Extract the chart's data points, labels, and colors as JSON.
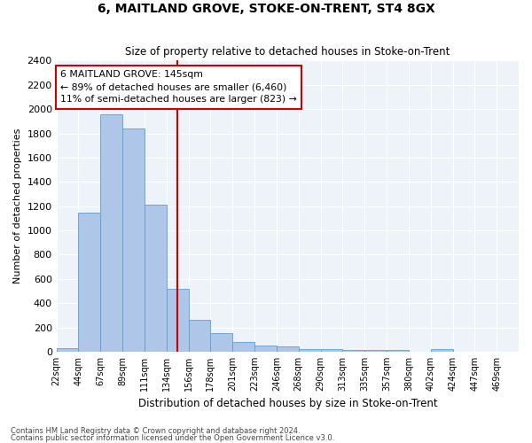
{
  "title": "6, MAITLAND GROVE, STOKE-ON-TRENT, ST4 8GX",
  "subtitle": "Size of property relative to detached houses in Stoke-on-Trent",
  "xlabel": "Distribution of detached houses by size in Stoke-on-Trent",
  "ylabel": "Number of detached properties",
  "bar_values": [
    30,
    1150,
    1960,
    1840,
    1215,
    515,
    265,
    155,
    80,
    50,
    45,
    25,
    20,
    15,
    15,
    15,
    0,
    20
  ],
  "bin_labels": [
    "22sqm",
    "44sqm",
    "67sqm",
    "89sqm",
    "111sqm",
    "134sqm",
    "156sqm",
    "178sqm",
    "201sqm",
    "223sqm",
    "246sqm",
    "268sqm",
    "290sqm",
    "313sqm",
    "335sqm",
    "357sqm",
    "380sqm",
    "402sqm",
    "424sqm",
    "447sqm",
    "469sqm"
  ],
  "bar_color": "#aec6e8",
  "bar_edge_color": "#5a9fd4",
  "vline_bin": 5,
  "vline_color": "#cc0000",
  "annotation_text": "6 MAITLAND GROVE: 145sqm\n← 89% of detached houses are smaller (6,460)\n11% of semi-detached houses are larger (823) →",
  "annotation_box_color": "white",
  "annotation_box_edge": "#cc0000",
  "ylim": [
    0,
    2400
  ],
  "yticks": [
    0,
    200,
    400,
    600,
    800,
    1000,
    1200,
    1400,
    1600,
    1800,
    2000,
    2200,
    2400
  ],
  "background_color": "#eef2f9",
  "grid_color": "#ffffff",
  "footer1": "Contains HM Land Registry data © Crown copyright and database right 2024.",
  "footer2": "Contains public sector information licensed under the Open Government Licence v3.0."
}
